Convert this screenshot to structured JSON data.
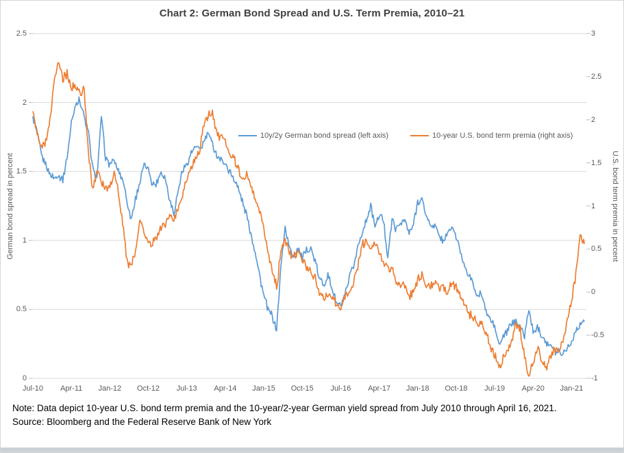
{
  "window": {
    "bottom_strip_color": "#ccd0d7"
  },
  "note": {
    "line1": "Note: Data depict 10-year U.S. bond term premia and the 10-year/2-year German yield spread from July 2010 through April 16, 2021.",
    "line2": "Source: Bloomberg and the Federal Reserve Bank of New York"
  },
  "chart_data": {
    "type": "line",
    "title": "Chart 2: German Bond Spread and U.S. Term Premia, 2010–21",
    "grid": "horizontal",
    "legend_position": "inside-top",
    "grid_color": "#d9d9d9",
    "tick_mark_color": "#bfbfbf",
    "x_start": "Jul-2010",
    "x_end": "Apr-16-2021",
    "x_interval": "monthly",
    "left_axis": {
      "label": "German bond spread in percent",
      "ylim": [
        0,
        2.5
      ],
      "tick_labels": [
        "2.5",
        "2",
        "1.5",
        "1",
        "0.5",
        "0"
      ],
      "tick_values": [
        2.5,
        2,
        1.5,
        1,
        0.5,
        0
      ]
    },
    "right_axis": {
      "label": "U.S. bond term premia in percent",
      "ylim": [
        -1,
        3
      ],
      "tick_labels": [
        "3",
        "2.5",
        "2",
        "1.5",
        "1",
        "0.5",
        "0",
        "-0.5",
        "-1"
      ],
      "tick_values": [
        3,
        2.5,
        2,
        1.5,
        1,
        0.5,
        0,
        -0.5,
        -1
      ]
    },
    "x_axis": {
      "tick_labels": [
        "Jul-10",
        "Apr-11",
        "Jan-12",
        "Oct-12",
        "Jul-13",
        "Apr-14",
        "Jan-15",
        "Oct-15",
        "Jul-16",
        "Apr-17",
        "Jan-18",
        "Oct-18",
        "Jul-19",
        "Apr-20",
        "Jan-21"
      ],
      "tick_months": [
        0,
        9,
        18,
        27,
        36,
        45,
        54,
        63,
        72,
        81,
        90,
        99,
        108,
        117,
        126
      ]
    },
    "series": [
      {
        "name": "10y/2y German bond spread (left axis)",
        "axis": "left",
        "color": "#5b9bd5",
        "values": [
          1.9,
          1.78,
          1.62,
          1.55,
          1.48,
          1.45,
          1.47,
          1.44,
          1.6,
          1.85,
          2.0,
          2.02,
          1.9,
          1.78,
          1.52,
          1.45,
          1.9,
          1.6,
          1.55,
          1.58,
          1.5,
          1.45,
          1.28,
          1.15,
          1.3,
          1.42,
          1.55,
          1.52,
          1.4,
          1.42,
          1.5,
          1.45,
          1.3,
          1.2,
          1.36,
          1.51,
          1.55,
          1.63,
          1.68,
          1.65,
          1.72,
          1.78,
          1.7,
          1.62,
          1.58,
          1.56,
          1.5,
          1.45,
          1.38,
          1.28,
          1.18,
          1.05,
          0.92,
          0.75,
          0.6,
          0.5,
          0.45,
          0.35,
          0.8,
          1.1,
          0.95,
          0.88,
          0.95,
          0.87,
          0.92,
          0.95,
          0.85,
          0.72,
          0.68,
          0.75,
          0.65,
          0.55,
          0.52,
          0.6,
          0.72,
          0.82,
          0.95,
          1.05,
          1.15,
          1.25,
          1.1,
          1.18,
          1.15,
          0.88,
          1.15,
          1.08,
          1.12,
          1.15,
          1.05,
          1.12,
          1.28,
          1.3,
          1.18,
          1.1,
          1.12,
          1.02,
          1.0,
          1.05,
          1.1,
          1.02,
          0.92,
          0.82,
          0.75,
          0.68,
          0.58,
          0.62,
          0.48,
          0.42,
          0.38,
          0.24,
          0.3,
          0.35,
          0.4,
          0.42,
          0.38,
          0.3,
          0.5,
          0.33,
          0.37,
          0.32,
          0.27,
          0.24,
          0.2,
          0.2,
          0.18,
          0.22,
          0.26,
          0.35,
          0.4,
          0.41
        ]
      },
      {
        "name": "10-year U.S. bond term premia (right axis)",
        "axis": "right",
        "color": "#ed7d31",
        "values": [
          2.1,
          1.85,
          1.66,
          1.75,
          2.0,
          2.45,
          2.65,
          2.45,
          2.55,
          2.35,
          2.4,
          2.3,
          2.35,
          1.6,
          1.2,
          1.4,
          1.28,
          1.2,
          1.25,
          1.37,
          1.18,
          0.81,
          0.35,
          0.3,
          0.44,
          0.85,
          0.7,
          0.6,
          0.55,
          0.65,
          0.75,
          0.78,
          0.89,
          0.81,
          0.97,
          1.13,
          1.31,
          1.44,
          1.55,
          1.65,
          1.95,
          2.05,
          2.09,
          1.85,
          1.8,
          1.75,
          1.6,
          1.55,
          1.45,
          1.3,
          1.35,
          1.25,
          1.1,
          0.95,
          0.75,
          0.42,
          0.28,
          0.05,
          0.45,
          0.6,
          0.45,
          0.4,
          0.47,
          0.38,
          0.3,
          0.26,
          0.15,
          -0.02,
          -0.08,
          -0.03,
          -0.08,
          -0.15,
          -0.19,
          -0.05,
          0.0,
          0.1,
          0.3,
          0.55,
          0.6,
          0.5,
          0.55,
          0.45,
          0.35,
          0.25,
          0.3,
          0.12,
          0.05,
          0.1,
          -0.04,
          0.0,
          0.15,
          0.2,
          0.1,
          0.07,
          0.12,
          0.05,
          0.08,
          0.0,
          0.1,
          0.07,
          -0.05,
          -0.15,
          -0.25,
          -0.28,
          -0.4,
          -0.36,
          -0.5,
          -0.62,
          -0.72,
          -0.86,
          -0.78,
          -0.67,
          -0.57,
          -0.38,
          -0.43,
          -0.75,
          -1.0,
          -0.79,
          -0.65,
          -0.79,
          -0.9,
          -0.75,
          -0.67,
          -0.7,
          -0.54,
          -0.33,
          -0.1,
          0.2,
          0.65,
          0.56
        ]
      }
    ]
  }
}
